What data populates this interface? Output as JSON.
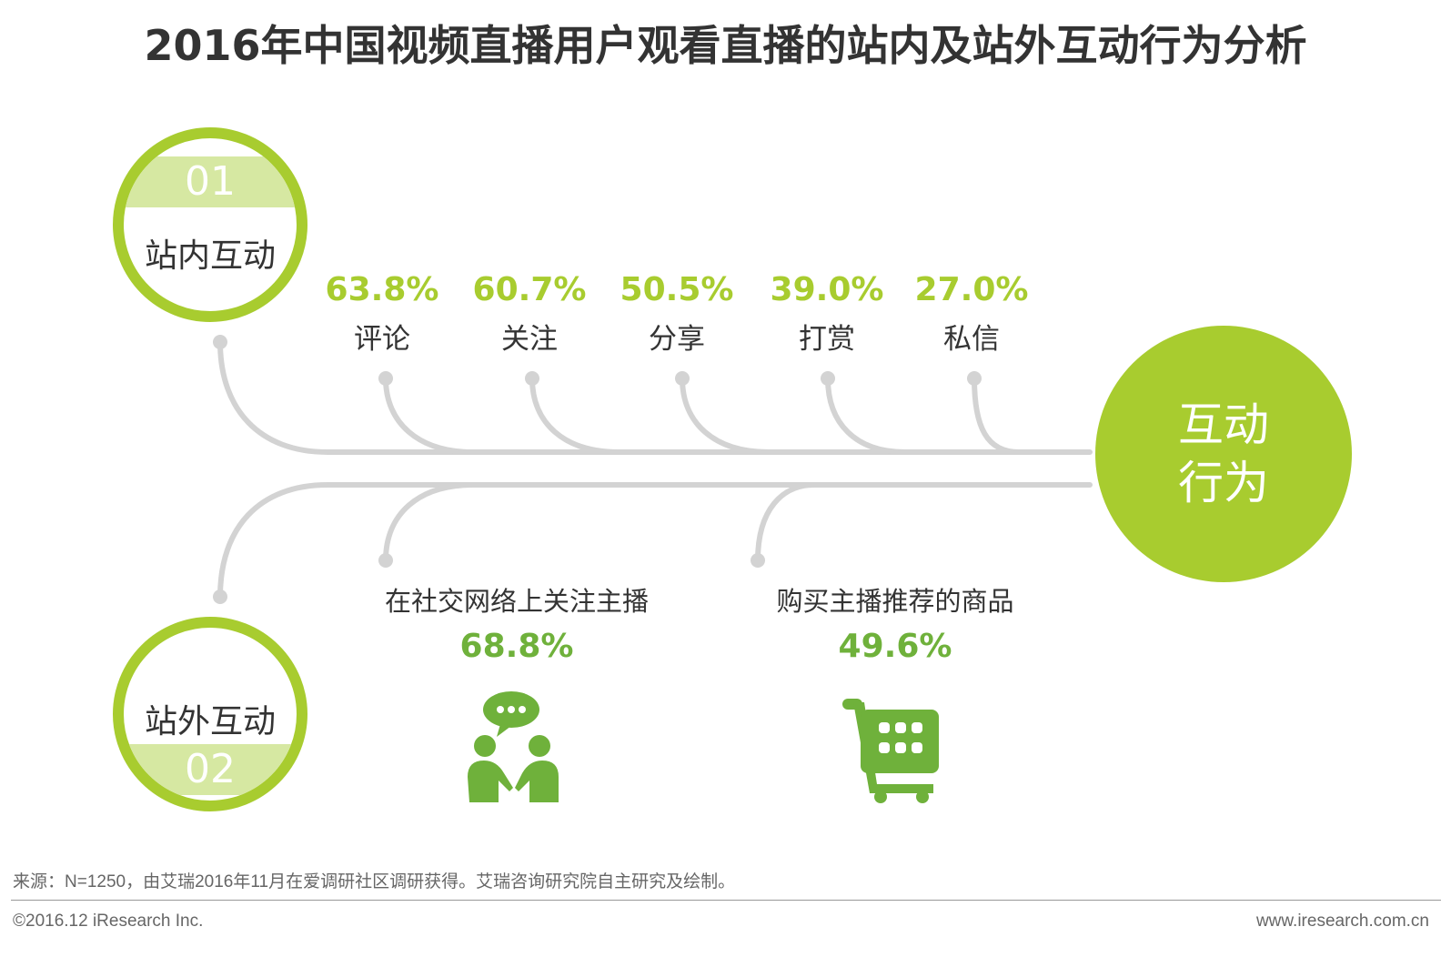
{
  "title": "2016年中国视频直播用户观看直播的站内及站外互动行为分析",
  "hub": {
    "line1": "互动",
    "line2": "行为"
  },
  "onsite": {
    "number": "01",
    "label": "站内互动",
    "items": [
      {
        "percent": "63.8%",
        "label": "评论"
      },
      {
        "percent": "60.7%",
        "label": "关注"
      },
      {
        "percent": "50.5%",
        "label": "分享"
      },
      {
        "percent": "39.0%",
        "label": "打赏"
      },
      {
        "percent": "27.0%",
        "label": "私信"
      }
    ]
  },
  "offsite": {
    "number": "02",
    "label": "站外互动",
    "items": [
      {
        "label": "在社交网络上关注主播",
        "percent": "68.8%",
        "icon": "people-chat-icon"
      },
      {
        "label": "购买主播推荐的商品",
        "percent": "49.6%",
        "icon": "shopping-cart-icon"
      }
    ]
  },
  "colors": {
    "accent": "#a8cc2f",
    "accent_light": "#d6e8a2",
    "icon_green": "#6fb13b",
    "line": "#d3d3d3"
  },
  "footer": {
    "source": "来源：N=1250，由艾瑞2016年11月在爱调研社区调研获得。艾瑞咨询研究院自主研究及绘制。",
    "copyright": "©2016.12 iResearch Inc.",
    "website": "www.iresearch.com.cn"
  }
}
